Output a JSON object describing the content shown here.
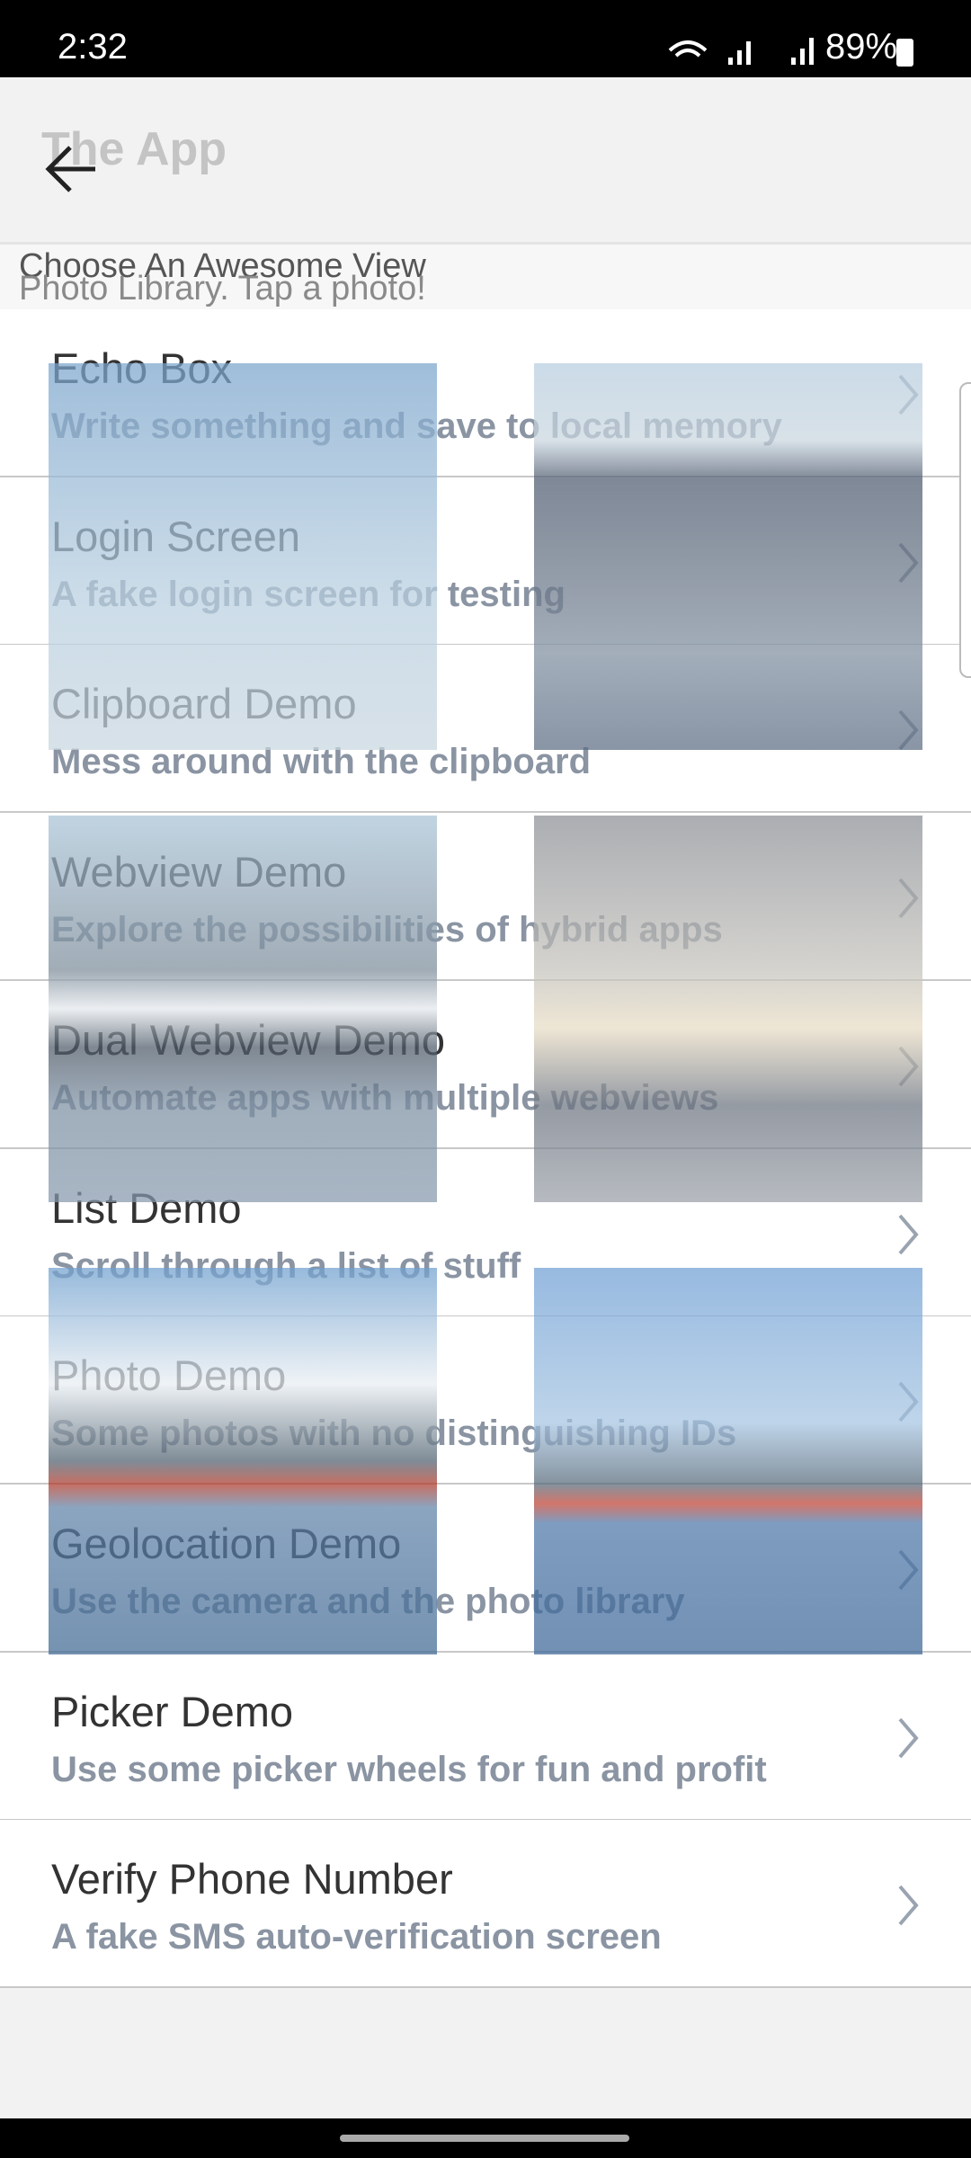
{
  "status_bar": {
    "time": "2:32",
    "battery": "89%"
  },
  "header": {
    "title": "The App"
  },
  "list_header": {
    "title": "Choose An Awesome View",
    "overlay_caption": "Photo Library. Tap a photo!"
  },
  "items": [
    {
      "title": "Echo Box",
      "subtitle": "Write something and save to local memory"
    },
    {
      "title": "Login Screen",
      "subtitle": "A fake login screen for testing"
    },
    {
      "title": "Clipboard Demo",
      "subtitle": "Mess around with the clipboard"
    },
    {
      "title": "Webview Demo",
      "subtitle": "Explore the possibilities of hybrid apps"
    },
    {
      "title": "Dual Webview Demo",
      "subtitle": "Automate apps with multiple webviews"
    },
    {
      "title": "List Demo",
      "subtitle": "Scroll through a list of stuff"
    },
    {
      "title": "Photo Demo",
      "subtitle": "Some photos with no distinguishing IDs"
    },
    {
      "title": "Geolocation Demo",
      "subtitle": "Use the camera and the photo library"
    },
    {
      "title": "Picker Demo",
      "subtitle": "Use some picker wheels for fun and profit"
    },
    {
      "title": "Verify Phone Number",
      "subtitle": "A fake SMS auto-verification screen"
    }
  ]
}
